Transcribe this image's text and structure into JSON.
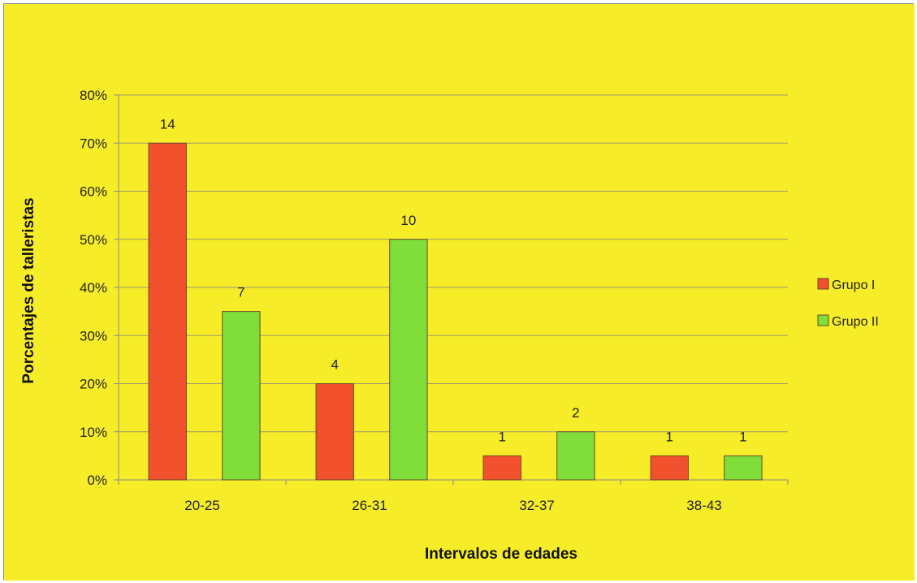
{
  "colors": {
    "background": "#f7ec28",
    "gridline": "#9a9a70",
    "axis": "#8a8a8a",
    "grupo1": "#f2512d",
    "grupo2": "#7fde3a"
  },
  "chart_data": {
    "type": "bar",
    "categories": [
      "20-25",
      "26-31",
      "32-37",
      "38-43"
    ],
    "series": [
      {
        "name": "Grupo I",
        "values": [
          70,
          20,
          5,
          5
        ],
        "labels": [
          "14",
          "4",
          "1",
          "1"
        ]
      },
      {
        "name": "Grupo II",
        "values": [
          35,
          50,
          10,
          5
        ],
        "labels": [
          "7",
          "10",
          "2",
          "1"
        ]
      }
    ],
    "xlabel": "Intervalos de edades",
    "ylabel": "Porcentajes de talleristas",
    "ylim": [
      0,
      80
    ],
    "y_ticks": [
      "0%",
      "10%",
      "20%",
      "30%",
      "40%",
      "50%",
      "60%",
      "70%",
      "80%"
    ],
    "grid": true,
    "legend_position": "right"
  }
}
